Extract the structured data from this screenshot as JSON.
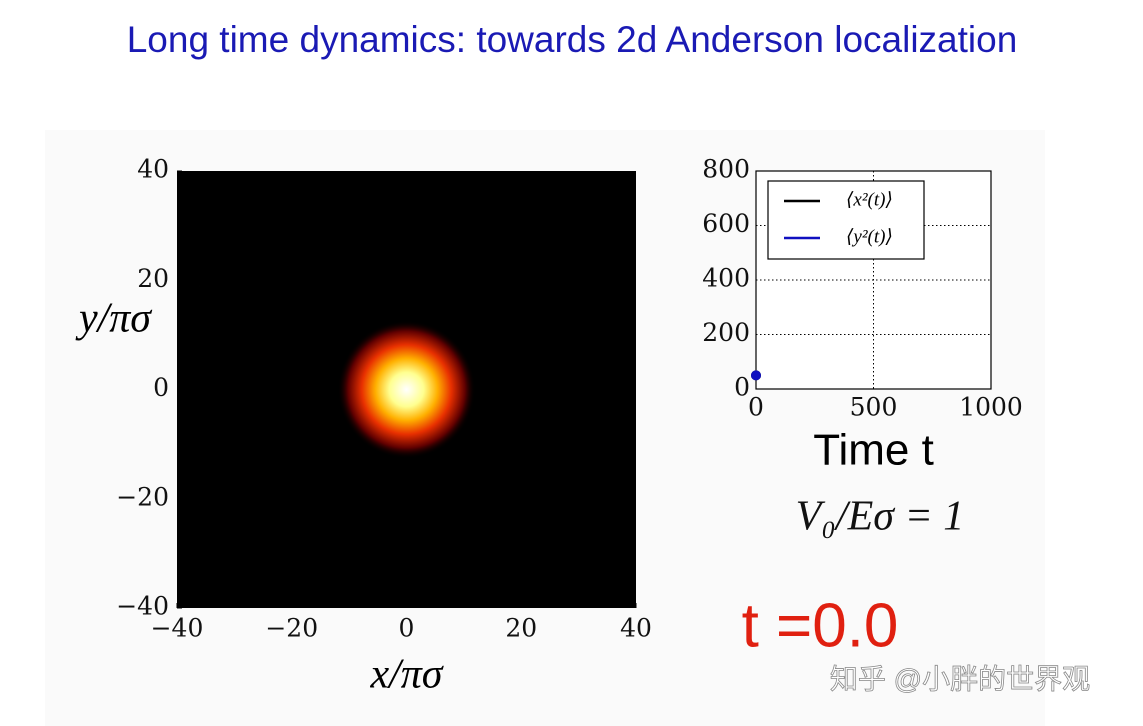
{
  "title": "Long time dynamics: towards 2d Anderson localization",
  "annotation": "V₀/Eσ = 1",
  "time_label": "t =0.0",
  "watermark": "知乎 @小胖的世界观",
  "chart_data": [
    {
      "type": "heatmap",
      "xlabel": "x/πσ",
      "ylabel": "y/πσ",
      "xlim": [
        -40,
        40
      ],
      "ylim": [
        -40,
        40
      ],
      "xticks": [
        {
          "value": -40,
          "label": "−40"
        },
        {
          "value": -20,
          "label": "−20"
        },
        0,
        20,
        40
      ],
      "yticks": [
        {
          "value": -40,
          "label": "−40"
        },
        {
          "value": -20,
          "label": "−20"
        },
        0,
        20,
        40
      ],
      "background": "#000000",
      "peak": {
        "x": 0,
        "y": 0,
        "width": 6
      }
    },
    {
      "type": "line",
      "xlabel": "Time t",
      "xlim": [
        0,
        1000
      ],
      "ylim": [
        0,
        800
      ],
      "xticks": [
        0,
        500,
        1000
      ],
      "yticks": [
        0,
        200,
        400,
        600,
        800
      ],
      "grid": true,
      "legend": "upper left",
      "x": [
        0
      ],
      "series": [
        {
          "name": "⟨x²(t)⟩",
          "color": "#000000",
          "values": [
            50
          ]
        },
        {
          "name": "⟨y²(t)⟩",
          "color": "#1010c0",
          "values": [
            50
          ]
        }
      ]
    }
  ]
}
